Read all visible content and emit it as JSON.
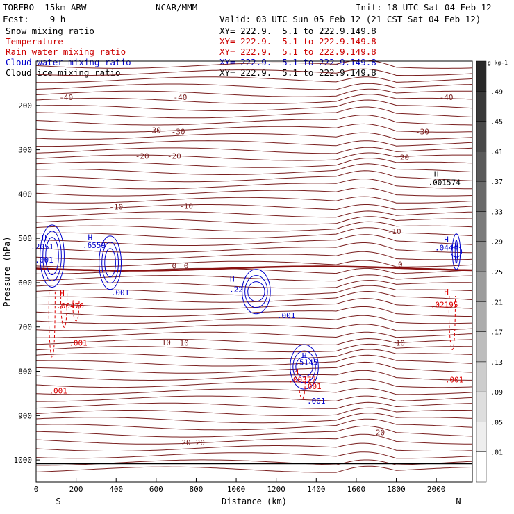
{
  "header": {
    "model": "TORERO  15km ARW",
    "org": "NCAR/MMM",
    "init": "Init: 18 UTC Sat 04 Feb 12",
    "fcst": "Fcst:    9 h",
    "valid": "Valid: 03 UTC Sun 05 Feb 12 (21 CST Sat 04 Feb 12)",
    "fields": [
      {
        "name": "Snow mixing ratio",
        "xy": "XY= 222.9.  5.1 to 222.9.149.8",
        "color": "#000000"
      },
      {
        "name": "Temperature",
        "xy": "XY= 222.9.  5.1 to 222.9.149.8",
        "color": "#cc0000"
      },
      {
        "name": "Rain water mixing ratio",
        "xy": "XY= 222.9.  5.1 to 222.9.149.8",
        "color": "#cc0000"
      },
      {
        "name": "Cloud water mixing ratio",
        "xy": "XY= 222.9.  5.1 to 222.9.149.8",
        "color": "#0000cc"
      },
      {
        "name": "Cloud ice mixing ratio",
        "xy": "XY= 222.9.  5.1 to 222.9.149.8",
        "color": "#000000"
      }
    ]
  },
  "chart_data": {
    "type": "contour",
    "xlabel": "Distance (km)",
    "ylabel": "Pressure (hPa)",
    "xlim": [
      0,
      2180
    ],
    "ylim": [
      1050,
      100
    ],
    "x_ticks": [
      0,
      200,
      400,
      600,
      800,
      1000,
      1200,
      1400,
      1600,
      1800,
      2000
    ],
    "y_ticks": [
      200,
      300,
      400,
      500,
      600,
      700,
      800,
      900,
      1000
    ],
    "x_end_labels": {
      "left": "S",
      "right": "N"
    },
    "colorbar": {
      "unit": "g kg-1",
      "labels": [
        ".01",
        ".05",
        ".09",
        ".13",
        ".17",
        ".21",
        ".25",
        ".29",
        ".33",
        ".37",
        ".41",
        ".45",
        ".49"
      ]
    },
    "temperature_labels": [
      {
        "text": "-40",
        "x": 150,
        "p": 188
      },
      {
        "text": "-40",
        "x": 720,
        "p": 188
      },
      {
        "text": "-40",
        "x": 2050,
        "p": 188
      },
      {
        "text": "-30",
        "x": 590,
        "p": 262
      },
      {
        "text": "-30",
        "x": 710,
        "p": 265
      },
      {
        "text": "-30",
        "x": 1930,
        "p": 265
      },
      {
        "text": "-20",
        "x": 530,
        "p": 320
      },
      {
        "text": "-20",
        "x": 690,
        "p": 320
      },
      {
        "text": "-20",
        "x": 1830,
        "p": 323
      },
      {
        "text": "-10",
        "x": 400,
        "p": 435
      },
      {
        "text": "-10",
        "x": 750,
        "p": 433
      },
      {
        "text": "-10",
        "x": 1790,
        "p": 490
      },
      {
        "text": "0",
        "x": 690,
        "p": 568
      },
      {
        "text": "0",
        "x": 750,
        "p": 568
      },
      {
        "text": "0",
        "x": 1820,
        "p": 565
      },
      {
        "text": "10",
        "x": 650,
        "p": 741
      },
      {
        "text": "10",
        "x": 740,
        "p": 742
      },
      {
        "text": "10",
        "x": 1820,
        "p": 742
      },
      {
        "text": "20",
        "x": 750,
        "p": 967
      },
      {
        "text": "20",
        "x": 820,
        "p": 967
      },
      {
        "text": "20",
        "x": 1720,
        "p": 944
      }
    ],
    "rain_labels": [
      {
        "text": "H",
        "x": 130,
        "p": 630
      },
      {
        "text": ".00476",
        "x": 170,
        "p": 658
      },
      {
        "text": ".001",
        "x": 210,
        "p": 742
      },
      {
        "text": ".001",
        "x": 110,
        "p": 850
      },
      {
        "text": "H",
        "x": 1300,
        "p": 807
      },
      {
        "text": ".00377",
        "x": 1330,
        "p": 825
      },
      {
        "text": ".001",
        "x": 1380,
        "p": 840
      },
      {
        "text": "H",
        "x": 2050,
        "p": 627
      },
      {
        "text": ".02195",
        "x": 2040,
        "p": 656
      },
      {
        "text": ".001",
        "x": 2090,
        "p": 825
      }
    ],
    "cloud_water_labels": [
      {
        "text": "H",
        "x": 40,
        "p": 505
      },
      {
        "text": ".2051",
        "x": 30,
        "p": 525
      },
      {
        "text": "H",
        "x": 270,
        "p": 504
      },
      {
        "text": ".6559",
        "x": 290,
        "p": 522
      },
      {
        "text": ".001",
        "x": 40,
        "p": 555
      },
      {
        "text": ".001",
        "x": 420,
        "p": 628
      },
      {
        "text": "H",
        "x": 980,
        "p": 598
      },
      {
        "text": ".22",
        "x": 1000,
        "p": 621
      },
      {
        "text": ".001",
        "x": 1250,
        "p": 680
      },
      {
        "text": "H",
        "x": 1340,
        "p": 771
      },
      {
        "text": ".5145",
        "x": 1350,
        "p": 786
      },
      {
        "text": ".001",
        "x": 1400,
        "p": 873
      },
      {
        "text": "H",
        "x": 2050,
        "p": 508
      },
      {
        "text": ".0444",
        "x": 2050,
        "p": 527
      }
    ],
    "ice_labels": [
      {
        "text": "H",
        "x": 2000,
        "p": 361
      },
      {
        "text": ".001574",
        "x": 2040,
        "p": 380
      }
    ]
  }
}
